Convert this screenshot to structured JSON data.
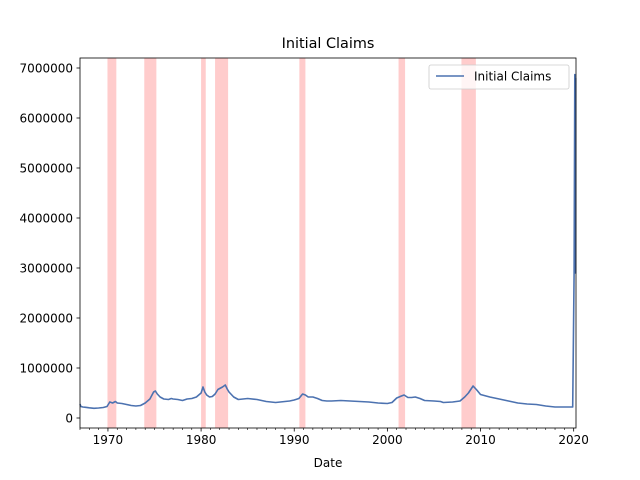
{
  "chart_data": {
    "type": "line",
    "title": "Initial Claims",
    "xlabel": "Date",
    "ylabel": "",
    "xlim": [
      1967.0,
      2020.25
    ],
    "ylim": [
      -200000,
      7200000
    ],
    "x_ticks": [
      1970,
      1980,
      1990,
      2000,
      2010,
      2020
    ],
    "x_tick_labels": [
      "1970",
      "1980",
      "1990",
      "2000",
      "2010",
      "2020"
    ],
    "y_ticks": [
      0,
      1000000,
      2000000,
      3000000,
      4000000,
      5000000,
      6000000,
      7000000
    ],
    "y_tick_labels": [
      "0",
      "1000000",
      "2000000",
      "3000000",
      "4000000",
      "5000000",
      "6000000",
      "7000000"
    ],
    "legend": {
      "position": "upper right",
      "entries": [
        "Initial Claims"
      ]
    },
    "grid": false,
    "line_color": "#4c72b0",
    "recession_color": "#ff0000",
    "recessions": [
      [
        1969.95,
        1970.9
      ],
      [
        1973.9,
        1975.2
      ],
      [
        1980.0,
        1980.5
      ],
      [
        1981.5,
        1982.9
      ],
      [
        1990.55,
        1991.2
      ],
      [
        2001.2,
        2001.9
      ],
      [
        2007.95,
        2009.5
      ]
    ],
    "series": [
      {
        "name": "Initial Claims",
        "x": [
          1967.0,
          1967.1,
          1967.3,
          1967.6,
          1968.0,
          1968.5,
          1969.0,
          1969.5,
          1969.9,
          1970.2,
          1970.5,
          1970.8,
          1971.0,
          1971.5,
          1972.0,
          1972.5,
          1973.0,
          1973.5,
          1974.0,
          1974.5,
          1974.9,
          1975.1,
          1975.3,
          1975.6,
          1976.0,
          1976.5,
          1976.8,
          1977.0,
          1977.5,
          1978.0,
          1978.5,
          1979.0,
          1979.5,
          1980.0,
          1980.2,
          1980.4,
          1980.6,
          1980.9,
          1981.2,
          1981.5,
          1981.8,
          1982.0,
          1982.3,
          1982.6,
          1982.8,
          1983.0,
          1983.5,
          1984.0,
          1984.5,
          1985.0,
          1986.0,
          1987.0,
          1988.0,
          1989.0,
          1989.5,
          1990.0,
          1990.5,
          1990.9,
          1991.2,
          1991.5,
          1992.0,
          1992.5,
          1993.0,
          1993.5,
          1994.0,
          1995.0,
          1996.0,
          1997.0,
          1998.0,
          1999.0,
          2000.0,
          2000.5,
          2001.0,
          2001.5,
          2001.8,
          2002.2,
          2002.6,
          2003.0,
          2003.5,
          2004.0,
          2005.0,
          2005.7,
          2006.0,
          2007.0,
          2007.8,
          2008.3,
          2008.7,
          2009.2,
          2009.6,
          2010.0,
          2011.0,
          2012.0,
          2013.0,
          2014.0,
          2015.0,
          2016.0,
          2017.0,
          2018.0,
          2019.0,
          2019.9,
          2020.05,
          2020.12,
          2020.17,
          2020.2,
          2020.22
        ],
        "y": [
          280000,
          230000,
          220000,
          215000,
          205000,
          195000,
          200000,
          210000,
          230000,
          320000,
          300000,
          330000,
          300000,
          290000,
          270000,
          250000,
          240000,
          250000,
          300000,
          380000,
          520000,
          540000,
          480000,
          420000,
          380000,
          370000,
          390000,
          380000,
          370000,
          350000,
          380000,
          390000,
          420000,
          500000,
          620000,
          520000,
          460000,
          420000,
          430000,
          480000,
          570000,
          590000,
          620000,
          660000,
          580000,
          520000,
          420000,
          370000,
          380000,
          390000,
          370000,
          330000,
          310000,
          330000,
          340000,
          360000,
          390000,
          480000,
          460000,
          420000,
          420000,
          390000,
          350000,
          340000,
          340000,
          350000,
          340000,
          330000,
          320000,
          300000,
          290000,
          310000,
          400000,
          440000,
          460000,
          410000,
          410000,
          420000,
          390000,
          350000,
          340000,
          330000,
          310000,
          320000,
          340000,
          420000,
          500000,
          640000,
          560000,
          470000,
          420000,
          380000,
          340000,
          300000,
          280000,
          270000,
          240000,
          220000,
          220000,
          220000,
          2900000,
          6870000,
          3200000,
          2900000,
          6800000
        ]
      }
    ]
  }
}
